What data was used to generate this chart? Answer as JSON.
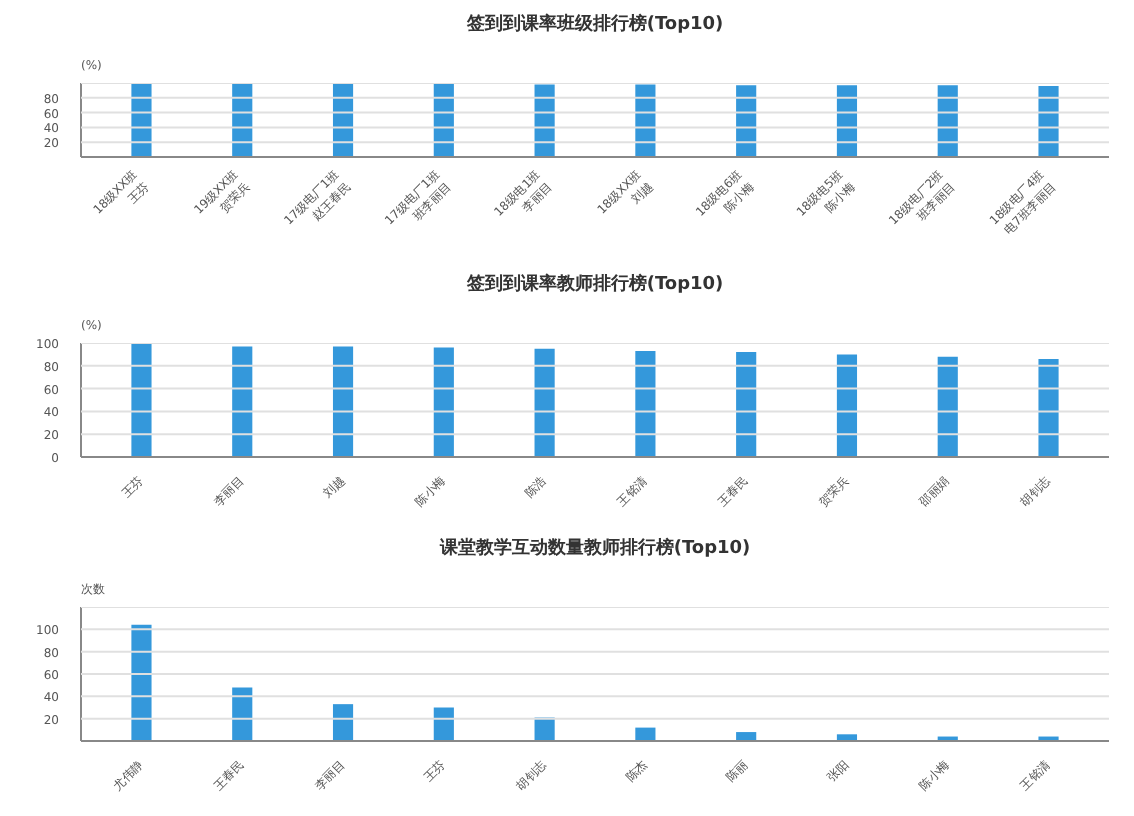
{
  "chart_data": [
    {
      "type": "bar",
      "title": "签到到课率班级排行榜(Top10)",
      "ylabel": "(%)",
      "categories": [
        "18级XX班\n王芬",
        "19级XX班\n贺荣兵",
        "17级电厂1班\n赵王春民",
        "17级电厂1班\n班李丽目",
        "18级电1班\n李丽目",
        "18级XX班\n刘越",
        "18级电6班\n陈小梅",
        "18级电5班\n陈小梅",
        "18级电厂2班\n班李丽目",
        "18级电厂4班\n电7班李丽目"
      ],
      "values": [
        100,
        100,
        99,
        99,
        98,
        98,
        97,
        97,
        97,
        96
      ],
      "color": "#3498db",
      "ylim": [
        0,
        100
      ],
      "yticks": [
        {
          "value": 0,
          "label": null
        },
        20,
        40,
        60,
        80,
        {
          "value": 100,
          "label": null
        }
      ],
      "grid": "y"
    },
    {
      "type": "bar",
      "title": "签到到课率教师排行榜(Top10)",
      "ylabel": "(%)",
      "categories": [
        "王芬",
        "李丽目",
        "刘越",
        "陈小梅",
        "陈浩",
        "王铭清",
        "王春民",
        "贺荣兵",
        "邵丽娟",
        "胡钊志"
      ],
      "values": [
        100,
        97,
        97,
        96,
        95,
        93,
        92,
        90,
        88,
        86
      ],
      "color": "#3498db",
      "ylim": [
        0,
        100
      ],
      "yticks": [
        0,
        20,
        40,
        60,
        80,
        100
      ],
      "grid": "y"
    },
    {
      "type": "bar",
      "title": "课堂教学互动数量教师排行榜(Top10)",
      "ylabel": "次数",
      "categories": [
        "尤伟静",
        "王春民",
        "李丽目",
        "王芬",
        "胡钊志",
        "陈杰",
        "陈丽",
        "张阳",
        "陈小梅",
        "王铭清"
      ],
      "values": [
        104,
        48,
        33,
        30,
        21,
        12,
        8,
        6,
        4,
        4
      ],
      "color": "#3498db",
      "ylim": [
        0,
        120
      ],
      "yticks": [
        {
          "value": 0,
          "label": null
        },
        20,
        40,
        60,
        80,
        100,
        {
          "value": 120,
          "label": null
        }
      ],
      "grid": "y"
    }
  ]
}
